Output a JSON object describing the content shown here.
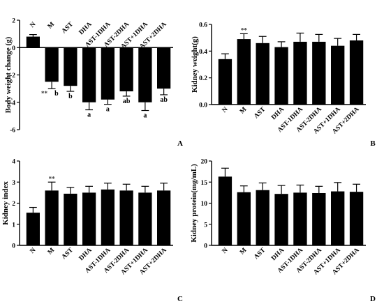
{
  "chart_data": [
    {
      "type": "bar",
      "panel": "A",
      "ylabel": "Body weight change (g)",
      "ylim": [
        -6,
        2
      ],
      "yticks": [
        "-6",
        "-4",
        "-2",
        "0",
        "2"
      ],
      "categories": [
        "N",
        "M",
        "AST",
        "DHA",
        "AST-1DHA",
        "AST-2DHA",
        "AST+1DHA",
        "AST+2DHA"
      ],
      "values": [
        0.8,
        -2.5,
        -2.8,
        -4.0,
        -3.8,
        -3.2,
        -4.0,
        -3.0
      ],
      "errors": [
        0.15,
        0.5,
        0.4,
        0.55,
        0.35,
        0.35,
        0.6,
        0.45
      ],
      "annotations": [
        "",
        "b",
        "b",
        "a",
        "a",
        "ab",
        "a",
        "ab"
      ],
      "significance": [
        "",
        "**",
        "",
        "",
        "",
        "",
        "",
        ""
      ]
    },
    {
      "type": "bar",
      "panel": "B",
      "ylabel": "Kidney weight(g)",
      "ylim": [
        0,
        0.6
      ],
      "yticks": [
        "0.0",
        "0.2",
        "0.4",
        "0.6"
      ],
      "categories": [
        "N",
        "M",
        "AST",
        "DHA",
        "AST-1DHA",
        "AST-2DHA",
        "AST+1DHA",
        "AST+2DHA"
      ],
      "values": [
        0.34,
        0.49,
        0.46,
        0.43,
        0.47,
        0.47,
        0.44,
        0.48
      ],
      "errors": [
        0.04,
        0.04,
        0.05,
        0.04,
        0.065,
        0.055,
        0.055,
        0.045
      ],
      "significance": [
        "",
        "**",
        "",
        "",
        "",
        "",
        "",
        ""
      ]
    },
    {
      "type": "bar",
      "panel": "C",
      "ylabel": "Kidney index",
      "ylim": [
        0,
        4
      ],
      "yticks": [
        "0",
        "1",
        "2",
        "3",
        "4"
      ],
      "categories": [
        "N",
        "M",
        "AST",
        "DHA",
        "AST-1DHA",
        "AST-2DHA",
        "AST+1DHA",
        "AST+2DHA"
      ],
      "values": [
        1.55,
        2.6,
        2.45,
        2.5,
        2.65,
        2.6,
        2.5,
        2.6
      ],
      "errors": [
        0.25,
        0.4,
        0.3,
        0.3,
        0.3,
        0.3,
        0.3,
        0.35
      ],
      "significance": [
        "",
        "**",
        "",
        "",
        "",
        "",
        "",
        ""
      ]
    },
    {
      "type": "bar",
      "panel": "D",
      "ylabel": "Kidney protein(mg/mL)",
      "ylim": [
        0,
        20
      ],
      "yticks": [
        "0",
        "5",
        "10",
        "15",
        "20"
      ],
      "categories": [
        "N",
        "M",
        "AST",
        "DHA",
        "AST-1DHA",
        "AST-2DHA",
        "AST+1DHA",
        "AST+2DHA"
      ],
      "values": [
        16.3,
        12.6,
        13.1,
        12.2,
        12.5,
        12.4,
        12.8,
        12.7
      ],
      "errors": [
        2.0,
        1.5,
        1.7,
        2.0,
        1.8,
        1.6,
        2.1,
        1.8
      ],
      "significance": [
        "",
        "",
        "",
        "",
        "",
        "",
        "",
        ""
      ]
    }
  ]
}
